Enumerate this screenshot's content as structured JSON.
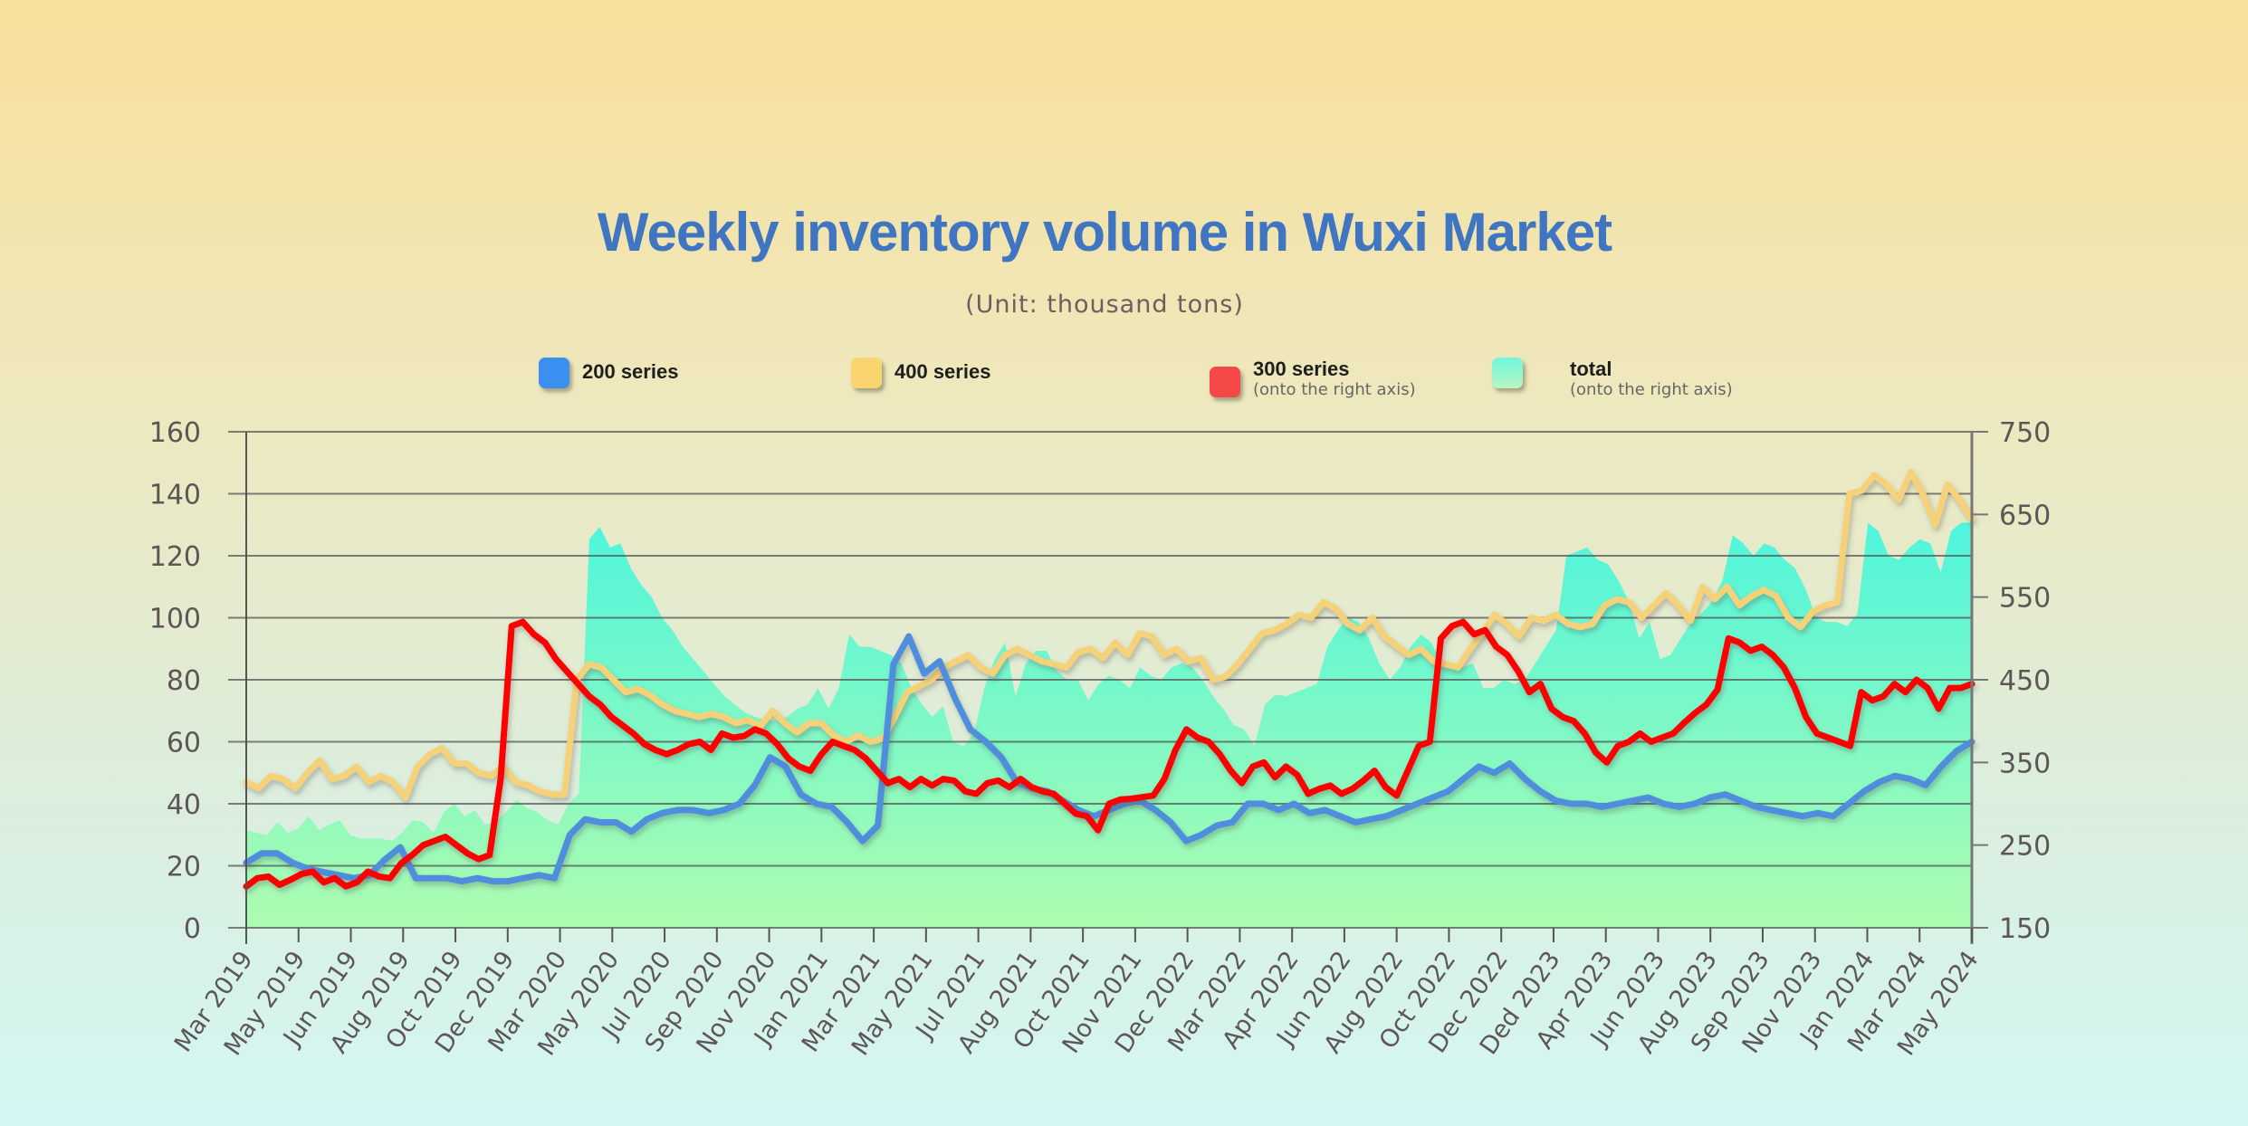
{
  "chart_data": {
    "type": "line",
    "title": "Weekly inventory volume in Wuxi Market",
    "subtitle": "(Unit: thousand tons)",
    "xlabel": "",
    "ylabel": "",
    "y_left": {
      "range": [
        0,
        160
      ],
      "ticks": [
        0,
        20,
        40,
        60,
        80,
        100,
        120,
        140,
        160
      ]
    },
    "y_right": {
      "range": [
        150,
        750
      ],
      "ticks": [
        150,
        250,
        350,
        450,
        550,
        650,
        750
      ]
    },
    "grid": true,
    "legend_position": "top",
    "x_tick_labels": [
      "Mar 2019",
      "May 2019",
      "Jun 2019",
      "Aug 2019",
      "Oct 2019",
      "Dec 2019",
      "Mar 2020",
      "May 2020",
      "Jul 2020",
      "Sep 2020",
      "Nov 2020",
      "Jan 2021",
      "Mar 2021",
      "May 2021",
      "Jul 2021",
      "Aug 2021",
      "Oct 2021",
      "Nov 2021",
      "Dec 2022",
      "Mar 2022",
      "Apr 2022",
      "Jun 2022",
      "Aug 2022",
      "Oct 2022",
      "Dec 2022",
      "Ded 2023",
      "Apr 2023",
      "Jun 2023",
      "Aug 2023",
      "Sep 2023",
      "Nov 2023",
      "Jan 2024",
      "Mar 2024",
      "May 2024"
    ],
    "series": [
      {
        "name": "total",
        "note": "(onto the right axis)",
        "axis": "right",
        "kind": "area",
        "color": "#4ff5dc",
        "color_bottom": "#adfcb0",
        "values": [
          268,
          265,
          262,
          278,
          265,
          270,
          285,
          268,
          275,
          280,
          262,
          258,
          258,
          258,
          255,
          265,
          280,
          278,
          265,
          290,
          300,
          285,
          292,
          275,
          278,
          290,
          305,
          295,
          290,
          280,
          275,
          300,
          312,
          620,
          635,
          610,
          615,
          585,
          565,
          550,
          525,
          510,
          490,
          475,
          460,
          445,
          430,
          420,
          410,
          405,
          402,
          400,
          405,
          415,
          420,
          440,
          415,
          440,
          505,
          490,
          490,
          485,
          480,
          470,
          440,
          420,
          405,
          418,
          375,
          370,
          385,
          440,
          475,
          495,
          430,
          470,
          485,
          485,
          460,
          450,
          450,
          425,
          445,
          455,
          450,
          440,
          465,
          455,
          450,
          465,
          470,
          465,
          450,
          430,
          415,
          395,
          390,
          370,
          420,
          432,
          430,
          435,
          440,
          445,
          490,
          510,
          525,
          520,
          500,
          470,
          450,
          465,
          490,
          505,
          495,
          470,
          468,
          465,
          470,
          440,
          440,
          450,
          445,
          450,
          470,
          490,
          510,
          600,
          605,
          610,
          595,
          590,
          570,
          545,
          500,
          520,
          475,
          480,
          500,
          520,
          530,
          545,
          570,
          625,
          615,
          600,
          615,
          610,
          595,
          585,
          560,
          525,
          520,
          520,
          515,
          530,
          640,
          630,
          600,
          595,
          610,
          620,
          615,
          580,
          630,
          640,
          640
        ]
      },
      {
        "name": "400 series",
        "note": "",
        "axis": "left",
        "kind": "line",
        "color": "#f5d27a",
        "values": [
          47,
          45,
          49,
          48,
          45,
          50,
          54,
          48,
          49,
          52,
          47,
          49,
          47,
          42,
          52,
          56,
          58,
          53,
          53,
          50,
          49,
          52,
          47,
          46,
          44,
          43,
          43,
          80,
          85,
          84,
          80,
          76,
          77,
          75,
          72,
          70,
          69,
          68,
          69,
          68,
          66,
          67,
          65,
          70,
          66,
          63,
          66,
          66,
          62,
          60,
          62,
          60,
          61,
          68,
          76,
          78,
          80,
          84,
          86,
          88,
          84,
          82,
          88,
          90,
          88,
          86,
          85,
          84,
          89,
          90,
          87,
          92,
          88,
          95,
          94,
          88,
          90,
          86,
          87,
          80,
          81,
          85,
          90,
          95,
          96,
          98,
          101,
          100,
          105,
          103,
          98,
          96,
          100,
          94,
          91,
          88,
          90,
          86,
          85,
          84,
          90,
          95,
          101,
          98,
          94,
          100,
          99,
          101,
          98,
          97,
          98,
          104,
          106,
          105,
          100,
          104,
          108,
          104,
          99,
          110,
          106,
          110,
          104,
          107,
          109,
          107,
          100,
          97,
          102,
          104,
          105,
          140,
          141,
          146,
          143,
          138,
          147,
          140,
          130,
          143,
          138,
          132
        ]
      },
      {
        "name": "200 series",
        "note": "",
        "axis": "left",
        "kind": "line",
        "color": "#4f8ddd",
        "values": [
          21,
          24,
          24,
          21,
          19,
          18,
          17,
          16,
          17,
          22,
          26,
          16,
          16,
          16,
          15,
          16,
          15,
          15,
          16,
          17,
          16,
          30,
          35,
          34,
          34,
          31,
          35,
          37,
          38,
          38,
          37,
          38,
          40,
          46,
          55,
          52,
          43,
          40,
          39,
          34,
          28,
          33,
          85,
          94,
          82,
          86,
          74,
          64,
          60,
          55,
          47,
          45,
          44,
          41,
          38,
          36,
          38,
          40,
          41,
          38,
          34,
          28,
          30,
          33,
          34,
          40,
          40,
          38,
          40,
          37,
          38,
          36,
          34,
          35,
          36,
          38,
          40,
          42,
          44,
          48,
          52,
          50,
          53,
          48,
          44,
          41,
          40,
          40,
          39,
          40,
          41,
          42,
          40,
          39,
          40,
          42,
          43,
          41,
          39,
          38,
          37,
          36,
          37,
          36,
          40,
          44,
          47,
          49,
          48,
          46,
          52,
          57,
          60
        ]
      },
      {
        "name": "300 series",
        "note": "(onto the right axis)",
        "axis": "right",
        "kind": "line",
        "color": "#ff0000",
        "values": [
          200,
          210,
          212,
          202,
          208,
          215,
          218,
          205,
          210,
          200,
          205,
          218,
          212,
          210,
          228,
          238,
          250,
          255,
          260,
          250,
          240,
          233,
          238,
          330,
          515,
          520,
          505,
          495,
          475,
          460,
          445,
          430,
          420,
          405,
          395,
          385,
          372,
          365,
          360,
          365,
          372,
          375,
          365,
          385,
          380,
          382,
          390,
          385,
          372,
          355,
          345,
          340,
          360,
          375,
          370,
          365,
          355,
          340,
          325,
          330,
          320,
          330,
          322,
          330,
          328,
          315,
          312,
          325,
          328,
          320,
          330,
          320,
          315,
          312,
          300,
          288,
          285,
          268,
          300,
          305,
          306,
          308,
          310,
          330,
          365,
          390,
          380,
          375,
          360,
          340,
          325,
          345,
          350,
          332,
          345,
          335,
          312,
          318,
          322,
          312,
          318,
          328,
          340,
          320,
          310,
          340,
          370,
          375,
          500,
          515,
          520,
          505,
          510,
          490,
          480,
          460,
          435,
          445,
          415,
          405,
          400,
          385,
          362,
          350,
          370,
          375,
          385,
          375,
          380,
          385,
          398,
          410,
          420,
          438,
          500,
          495,
          485,
          490,
          480,
          465,
          440,
          405,
          385,
          380,
          375,
          370,
          435,
          425,
          430,
          445,
          435,
          450,
          440,
          415,
          440,
          440,
          445
        ]
      }
    ]
  },
  "legend": [
    {
      "label": "200 series",
      "note": "",
      "color": "#3a8ff0",
      "icon": "blue-square-swatch"
    },
    {
      "label": "400 series",
      "note": "",
      "color": "#fad46e",
      "icon": "yellow-square-swatch"
    },
    {
      "label": "300 series",
      "note": "(onto the right axis)",
      "color": "#f54848",
      "icon": "red-square-swatch"
    },
    {
      "label": "total",
      "note": "(onto the right axis)",
      "color": "#7ef5d8",
      "icon": "teal-square-swatch"
    }
  ]
}
